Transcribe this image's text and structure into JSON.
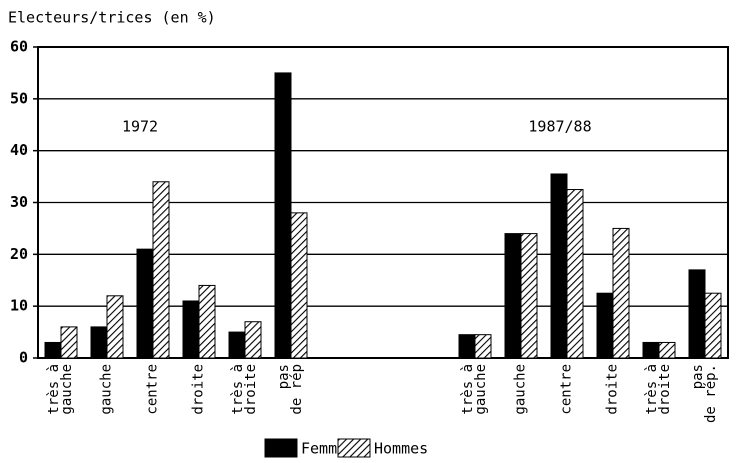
{
  "chart_data": {
    "type": "bar",
    "title": "Electeurs/trices (en %)",
    "annotations": [
      "1972",
      "1987/88"
    ],
    "categories": [
      "très à\ngauche",
      "gauche",
      "centre",
      "droite",
      "très à\ndroite",
      "pas\nde rép",
      null,
      null,
      null,
      "très à\ngauche",
      "gauche",
      "centre",
      "droite",
      "très à\ndroite",
      "pas\nde rép."
    ],
    "series": [
      {
        "name": "Femmes",
        "color": "#000000",
        "hatch": false,
        "values": [
          3,
          6,
          21,
          11,
          5,
          55,
          null,
          null,
          null,
          4.5,
          24,
          35.5,
          12.5,
          3,
          17
        ]
      },
      {
        "name": "Hommes",
        "color": "#000000",
        "hatch": true,
        "values": [
          6,
          12,
          34,
          14,
          7,
          28,
          null,
          null,
          null,
          4.5,
          24,
          32.5,
          25,
          3,
          12.5
        ]
      }
    ],
    "ylim": [
      0,
      60
    ],
    "yticks": [
      0,
      10,
      20,
      30,
      40,
      50,
      60
    ],
    "grid": true,
    "legend": "bottom"
  }
}
